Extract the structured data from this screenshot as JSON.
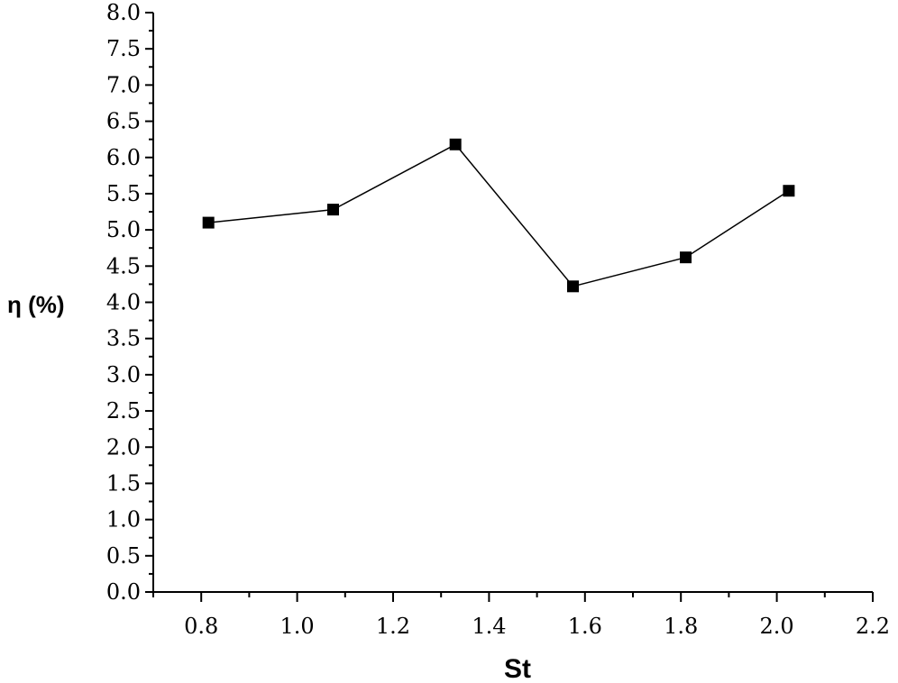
{
  "chart_data": {
    "type": "line",
    "title": "",
    "xlabel": "St",
    "ylabel": "η (%)",
    "xlim": [
      0.7,
      2.2
    ],
    "ylim": [
      0.0,
      8.0
    ],
    "x_ticks": [
      "0.8",
      "1.0",
      "1.2",
      "1.4",
      "1.6",
      "1.8",
      "2.0",
      "2.2"
    ],
    "y_ticks": [
      "0.0",
      "0.5",
      "1.0",
      "1.5",
      "2.0",
      "2.5",
      "3.0",
      "3.5",
      "4.0",
      "4.5",
      "5.0",
      "5.5",
      "6.0",
      "6.5",
      "7.0",
      "7.5",
      "8.0"
    ],
    "grid": false,
    "legend": "none",
    "series": [
      {
        "marker": "square",
        "color": "#000000",
        "x": [
          0.815,
          1.075,
          1.33,
          1.575,
          1.81,
          2.025
        ],
        "y": [
          5.1,
          5.28,
          6.18,
          4.22,
          4.62,
          5.54
        ]
      }
    ]
  }
}
